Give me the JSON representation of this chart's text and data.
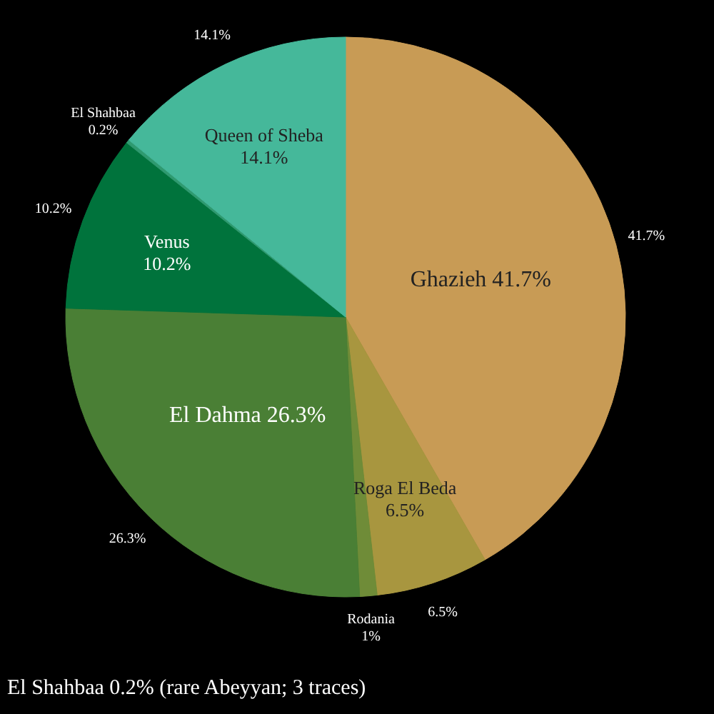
{
  "chart_data": {
    "type": "pie",
    "categories": [
      "Ghazieh",
      "Roga El Beda",
      "Rodania",
      "El Dahma",
      "Venus",
      "El Shahbaa",
      "Queen of Sheba"
    ],
    "values": [
      41.7,
      6.5,
      1,
      26.3,
      10.2,
      0.2,
      14.1
    ],
    "value_labels": [
      "41.7%",
      "6.5%",
      "1%",
      "26.3%",
      "10.2%",
      "0.2%",
      "14.1%"
    ],
    "colors": [
      "#c89b55",
      "#a8963f",
      "#6f8c38",
      "#4a7f35",
      "#00733c",
      "#2f9a70",
      "#45b89a"
    ],
    "annotations": [
      "El Shahbaa 0.2% (rare Abeyyan; 3 traces)"
    ]
  }
}
